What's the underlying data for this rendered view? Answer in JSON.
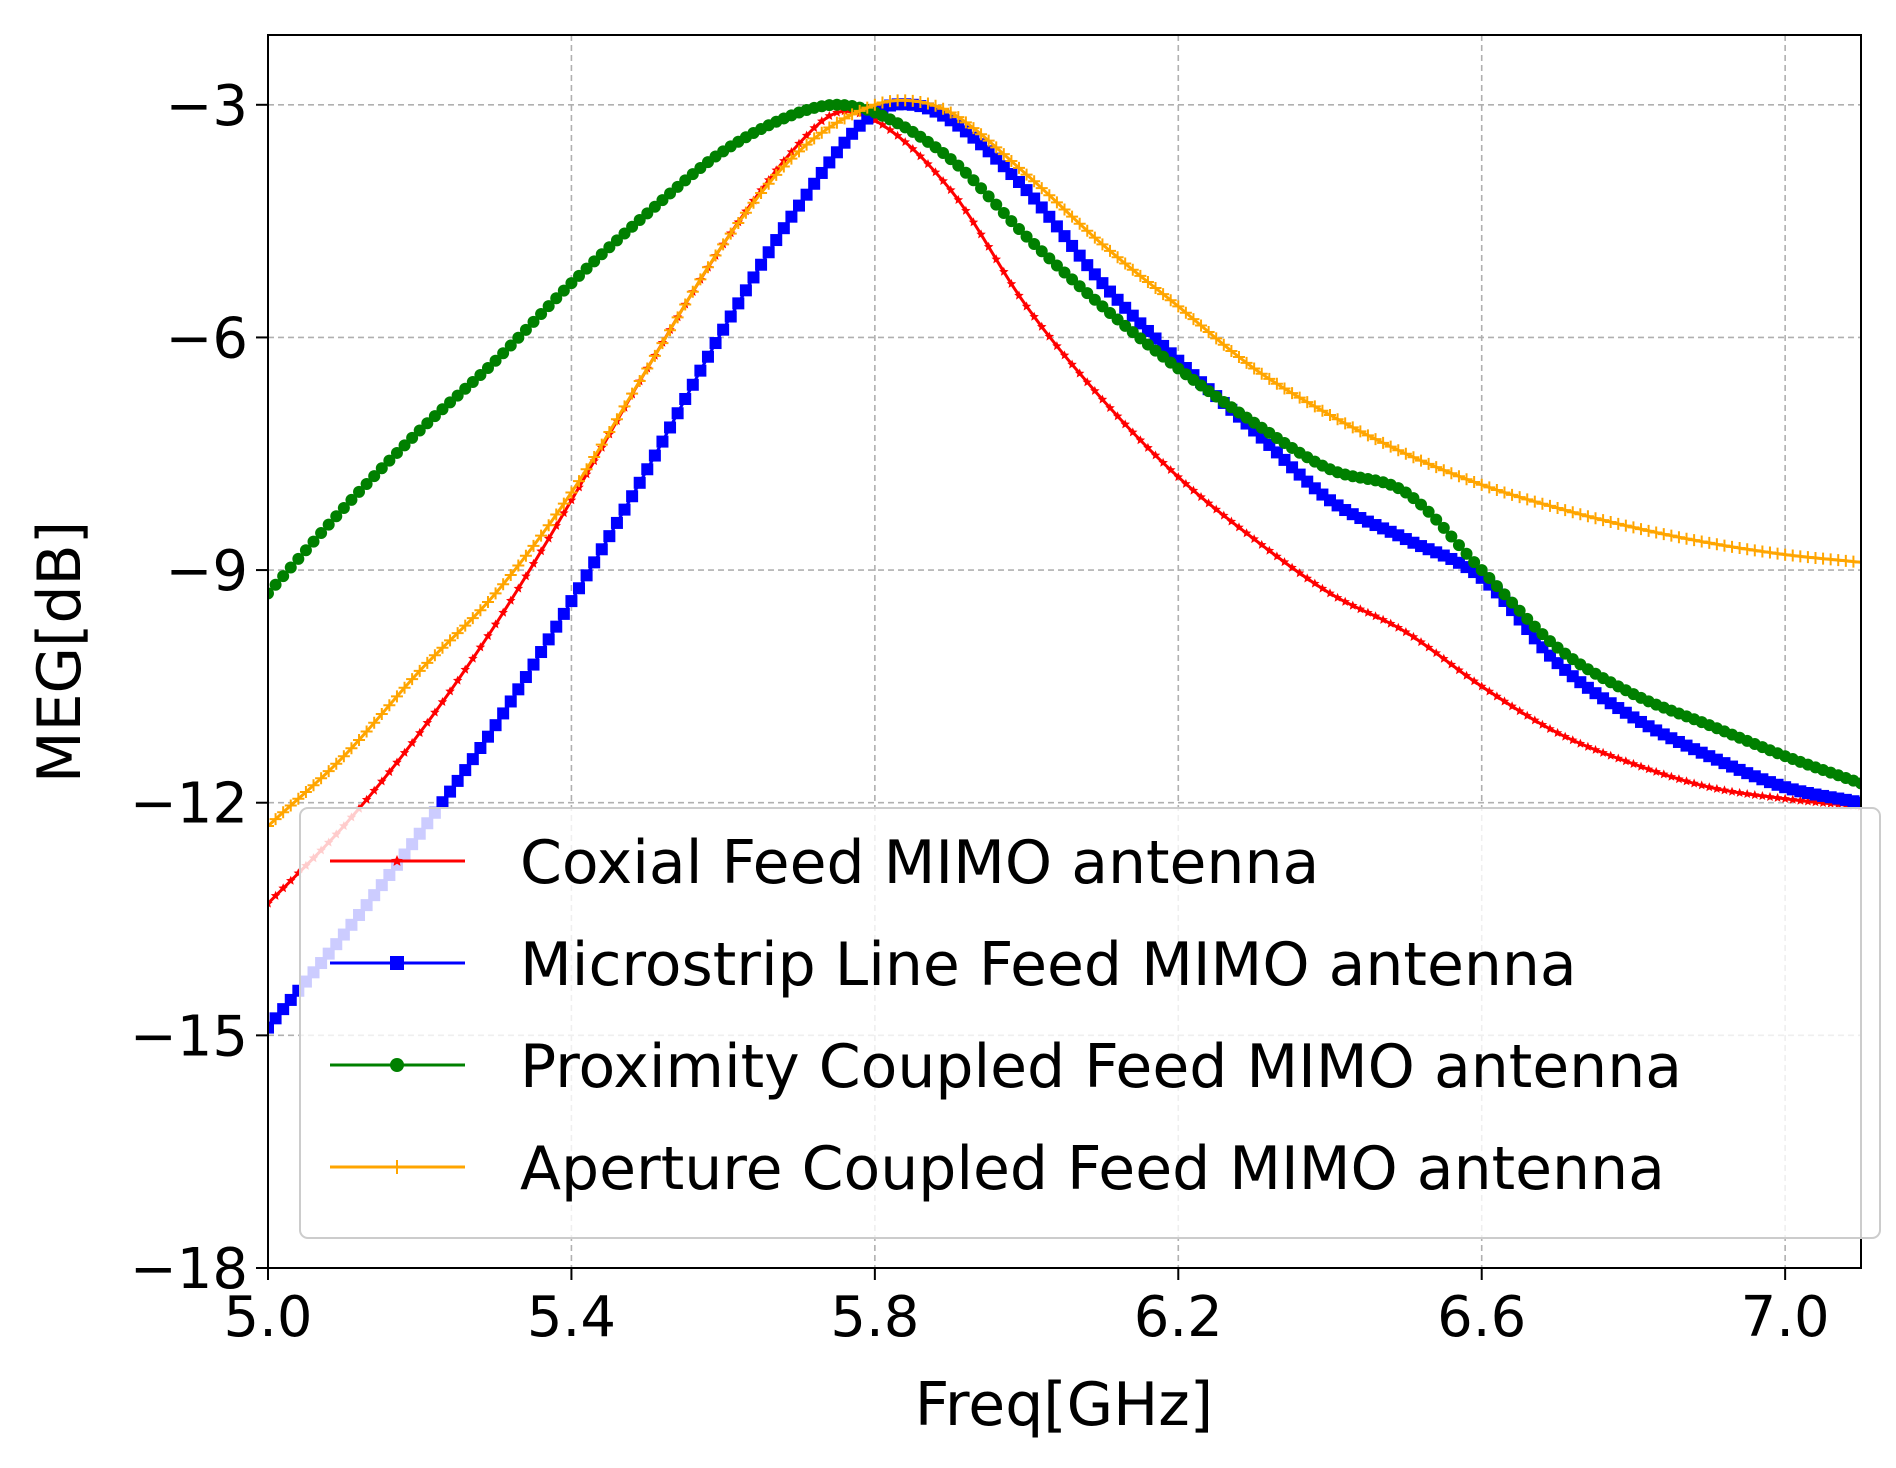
{
  "chart_data": {
    "type": "line",
    "title": "",
    "xlabel": "Freq[GHz]",
    "ylabel": "MEG[dB]",
    "xlim": [
      5.0,
      7.1
    ],
    "ylim": [
      -18,
      -2.1
    ],
    "xticks": [
      5.0,
      5.4,
      5.8,
      6.2,
      6.6,
      7.0
    ],
    "xtick_labels": [
      "5.0",
      "5.4",
      "5.8",
      "6.2",
      "6.6",
      "7.0"
    ],
    "yticks": [
      -18,
      -15,
      -12,
      -9,
      -6,
      -3
    ],
    "ytick_labels": [
      "−18",
      "−15",
      "−12",
      "−9",
      "−6",
      "−3"
    ],
    "grid": true,
    "legend_position": "lower-right",
    "series": [
      {
        "name": "Coxial Feed MIMO antenna",
        "color": "#ff0000",
        "marker": "star",
        "x": [
          5.0,
          5.1,
          5.2,
          5.3,
          5.4,
          5.5,
          5.6,
          5.7,
          5.75,
          5.8,
          5.9,
          6.0,
          6.1,
          6.2,
          6.3,
          6.4,
          6.5,
          6.6,
          6.7,
          6.8,
          6.9,
          7.0,
          7.1
        ],
        "y": [
          -13.3,
          -12.3,
          -11.1,
          -9.7,
          -8.1,
          -6.4,
          -4.8,
          -3.5,
          -3.1,
          -3.2,
          -4.1,
          -5.6,
          -6.8,
          -7.8,
          -8.6,
          -9.3,
          -9.8,
          -10.5,
          -11.1,
          -11.5,
          -11.8,
          -11.95,
          -12.05
        ]
      },
      {
        "name": "Microstrip Line Feed MIMO antenna",
        "color": "#0000ff",
        "marker": "square",
        "x": [
          5.0,
          5.1,
          5.2,
          5.3,
          5.4,
          5.5,
          5.6,
          5.7,
          5.8,
          5.85,
          5.9,
          6.0,
          6.1,
          6.2,
          6.3,
          6.4,
          6.5,
          6.6,
          6.7,
          6.8,
          6.9,
          7.0,
          7.1
        ],
        "y": [
          -14.9,
          -13.7,
          -12.4,
          -11.0,
          -9.4,
          -7.7,
          -5.9,
          -4.3,
          -3.1,
          -3.0,
          -3.2,
          -4.1,
          -5.3,
          -6.3,
          -7.2,
          -8.1,
          -8.6,
          -9.1,
          -10.2,
          -10.9,
          -11.4,
          -11.8,
          -12.0
        ]
      },
      {
        "name": "Proximity Coupled Feed MIMO antenna",
        "color": "#008000",
        "marker": "circle",
        "x": [
          5.0,
          5.1,
          5.2,
          5.3,
          5.4,
          5.5,
          5.6,
          5.7,
          5.75,
          5.8,
          5.9,
          6.0,
          6.1,
          6.2,
          6.3,
          6.4,
          6.5,
          6.6,
          6.7,
          6.8,
          6.9,
          7.0,
          7.1
        ],
        "y": [
          -9.3,
          -8.2,
          -7.2,
          -6.3,
          -5.3,
          -4.4,
          -3.6,
          -3.1,
          -3.0,
          -3.1,
          -3.7,
          -4.7,
          -5.6,
          -6.4,
          -7.1,
          -7.7,
          -8.0,
          -9.0,
          -10.0,
          -10.6,
          -11.0,
          -11.4,
          -11.75
        ]
      },
      {
        "name": "Aperture Coupled Feed MIMO antenna",
        "color": "#ffa500",
        "marker": "plus",
        "x": [
          5.0,
          5.1,
          5.2,
          5.3,
          5.4,
          5.5,
          5.6,
          5.7,
          5.8,
          5.85,
          5.9,
          6.0,
          6.1,
          6.2,
          6.3,
          6.4,
          6.5,
          6.6,
          6.7,
          6.8,
          6.9,
          7.0,
          7.1
        ],
        "y": [
          -12.3,
          -11.4,
          -10.3,
          -9.3,
          -8.0,
          -6.4,
          -4.8,
          -3.6,
          -3.0,
          -2.95,
          -3.1,
          -3.9,
          -4.8,
          -5.6,
          -6.4,
          -7.0,
          -7.5,
          -7.9,
          -8.2,
          -8.45,
          -8.65,
          -8.8,
          -8.9
        ]
      }
    ]
  }
}
